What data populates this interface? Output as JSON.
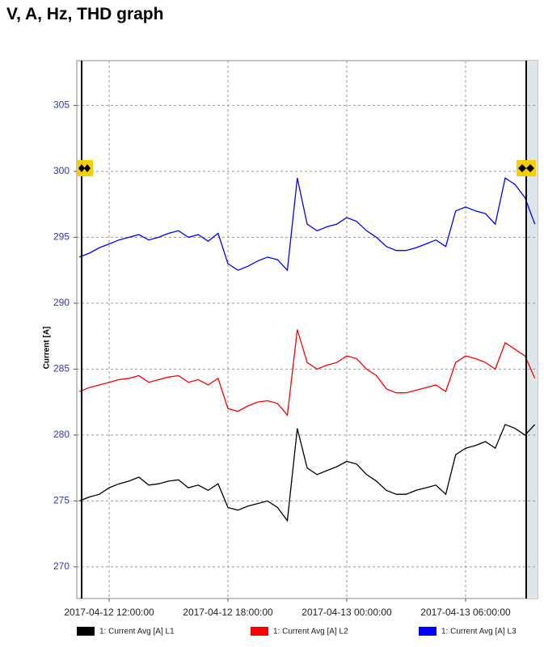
{
  "title": "V, A, Hz, THD graph",
  "chart_data": {
    "type": "line",
    "y_label": "Current [A]",
    "x": [
      "2017-04-12 10:30:00",
      "2017-04-12 11:00:00",
      "2017-04-12 11:30:00",
      "2017-04-12 12:00:00",
      "2017-04-12 12:30:00",
      "2017-04-12 13:00:00",
      "2017-04-12 13:30:00",
      "2017-04-12 14:00:00",
      "2017-04-12 14:30:00",
      "2017-04-12 15:00:00",
      "2017-04-12 15:30:00",
      "2017-04-12 16:00:00",
      "2017-04-12 16:30:00",
      "2017-04-12 17:00:00",
      "2017-04-12 17:30:00",
      "2017-04-12 18:00:00",
      "2017-04-12 18:30:00",
      "2017-04-12 19:00:00",
      "2017-04-12 19:30:00",
      "2017-04-12 20:00:00",
      "2017-04-12 20:30:00",
      "2017-04-12 21:00:00",
      "2017-04-12 21:30:00",
      "2017-04-12 22:00:00",
      "2017-04-12 22:30:00",
      "2017-04-12 23:00:00",
      "2017-04-12 23:30:00",
      "2017-04-13 00:00:00",
      "2017-04-13 00:30:00",
      "2017-04-13 01:00:00",
      "2017-04-13 01:30:00",
      "2017-04-13 02:00:00",
      "2017-04-13 02:30:00",
      "2017-04-13 03:00:00",
      "2017-04-13 03:30:00",
      "2017-04-13 04:00:00",
      "2017-04-13 04:30:00",
      "2017-04-13 05:00:00",
      "2017-04-13 05:30:00",
      "2017-04-13 06:00:00",
      "2017-04-13 06:30:00",
      "2017-04-13 07:00:00",
      "2017-04-13 07:30:00",
      "2017-04-13 08:00:00",
      "2017-04-13 08:30:00",
      "2017-04-13 09:00:00",
      "2017-04-13 09:30:00"
    ],
    "series": [
      {
        "name": "1: Current Avg [A] L1",
        "color": "#000000",
        "values": [
          275,
          275.3,
          275.5,
          276,
          276.3,
          276.5,
          276.8,
          276.2,
          276.3,
          276.5,
          276.6,
          276,
          276.2,
          275.8,
          276.3,
          274.5,
          274.3,
          274.6,
          274.8,
          275,
          274.5,
          273.5,
          280.5,
          277.5,
          277,
          277.3,
          277.6,
          278,
          277.8,
          277,
          276.5,
          275.8,
          275.5,
          275.5,
          275.8,
          276,
          276.2,
          275.5,
          278.5,
          279,
          279.2,
          279.5,
          279,
          280.8,
          280.5,
          280,
          280.8
        ]
      },
      {
        "name": "1: Current Avg [A] L2",
        "color": "#ff0000",
        "values": [
          283.3,
          283.6,
          283.8,
          284,
          284.2,
          284.3,
          284.5,
          284,
          284.2,
          284.4,
          284.5,
          284,
          284.2,
          283.8,
          284.3,
          282,
          281.8,
          282.2,
          282.5,
          282.6,
          282.4,
          281.5,
          288,
          285.5,
          285,
          285.3,
          285.5,
          286,
          285.8,
          285,
          284.5,
          283.5,
          283.2,
          283.2,
          283.4,
          283.6,
          283.8,
          283.3,
          285.5,
          286,
          285.8,
          285.5,
          285,
          287,
          286.5,
          286,
          284.3
        ]
      },
      {
        "name": "1: Current Avg [A] L3",
        "color": "#0000ff",
        "values": [
          293.5,
          293.8,
          294.2,
          294.5,
          294.8,
          295,
          295.2,
          294.8,
          295,
          295.3,
          295.5,
          295,
          295.2,
          294.7,
          295.3,
          293,
          292.5,
          292.8,
          293.2,
          293.5,
          293.3,
          292.5,
          299.5,
          296,
          295.5,
          295.8,
          296,
          296.5,
          296.2,
          295.5,
          295,
          294.3,
          294,
          294,
          294.2,
          294.5,
          294.8,
          294.3,
          297,
          297.3,
          297,
          296.8,
          296,
          299.5,
          299,
          298,
          296
        ]
      }
    ],
    "xlim": [
      "2017-04-12 10:22:00",
      "2017-04-13 09:38:00"
    ],
    "xticks": [
      "2017-04-12 12:00:00",
      "2017-04-12 18:00:00",
      "2017-04-13 00:00:00",
      "2017-04-13 06:00:00"
    ],
    "ylim": [
      267.6,
      308.4
    ],
    "yticks": [
      270,
      275,
      280,
      285,
      290,
      295,
      300,
      305
    ],
    "grid": true,
    "legend": "bottom"
  }
}
